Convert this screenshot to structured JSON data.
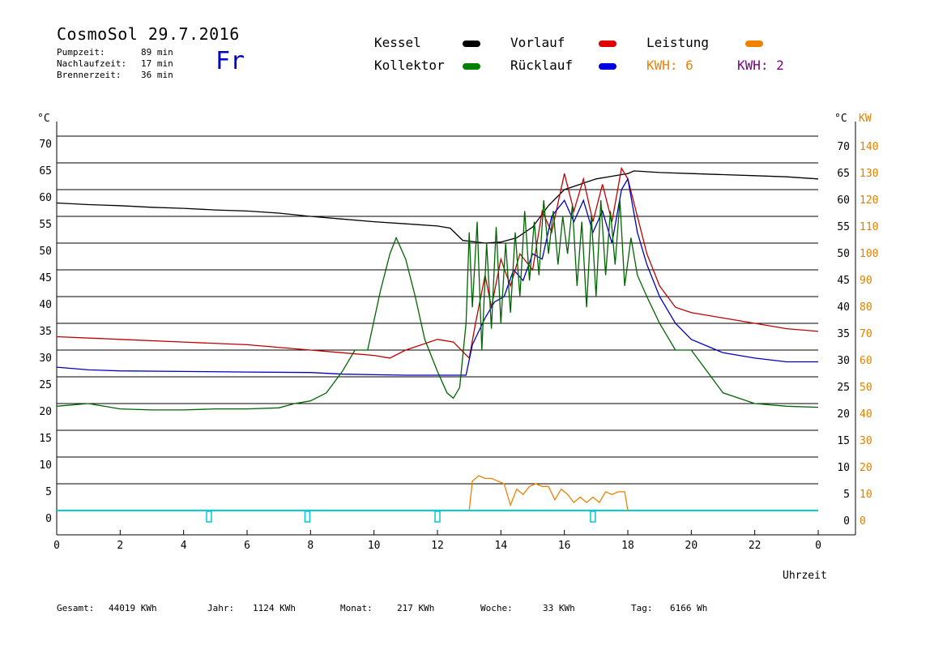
{
  "header": {
    "title": "CosmoSol 29.7.2016",
    "stats": [
      {
        "label": "Pumpzeit:",
        "value": "89 min"
      },
      {
        "label": "Nachlaufzeit:",
        "value": "17 min"
      },
      {
        "label": "Brennerzeit:",
        "value": "36 min"
      }
    ],
    "day": "Fr"
  },
  "legend": {
    "items": [
      {
        "label": "Kessel",
        "color": "#000000"
      },
      {
        "label": "Vorlauf",
        "color": "#e00000"
      },
      {
        "label": "Leistung",
        "color": "#f08000"
      },
      {
        "label": "Kollektor",
        "color": "#008000"
      },
      {
        "label": "Rücklauf",
        "color": "#0000e0"
      }
    ],
    "kwh": [
      {
        "label": "KWH: 6",
        "color": "#f08000"
      },
      {
        "label": "KWH: 2",
        "color": "#800080"
      }
    ]
  },
  "footer": [
    {
      "label": "Gesamt:",
      "value": "44019 KWh"
    },
    {
      "label": "Jahr:",
      "value": "1124 KWh"
    },
    {
      "label": "Monat:",
      "value": "217 KWh"
    },
    {
      "label": "Woche:",
      "value": "33 KWh"
    },
    {
      "label": "Tag:",
      "value": "6166 Wh"
    }
  ],
  "chart_data": {
    "type": "line",
    "xlabel": "Uhrzeit",
    "xlim": [
      0,
      24
    ],
    "x_ticks": [
      "0",
      "2",
      "4",
      "6",
      "8",
      "10",
      "12",
      "14",
      "16",
      "18",
      "20",
      "22",
      "0"
    ],
    "ylabel_left": "°C",
    "ylabel_right": "°C",
    "ylabel_right2": "KW",
    "ylim": [
      0,
      70
    ],
    "y_ticks": [
      0,
      5,
      10,
      15,
      20,
      25,
      30,
      35,
      40,
      45,
      50,
      55,
      60,
      65,
      70
    ],
    "y2_ticks": [
      0,
      10,
      20,
      30,
      40,
      50,
      60,
      70,
      80,
      90,
      100,
      110,
      120,
      130,
      140
    ],
    "y2_unit_ratio": 2,
    "grid": true,
    "series": [
      {
        "name": "Kessel",
        "color": "#000000",
        "x": [
          0,
          1,
          2,
          3,
          4,
          5,
          6,
          7,
          8,
          9,
          10,
          11,
          12,
          12.4,
          12.8,
          13.5,
          14,
          14.5,
          15,
          15.5,
          16,
          16.5,
          17,
          17.5,
          18,
          18.2,
          19,
          20,
          21,
          22,
          23,
          24
        ],
        "y": [
          57.5,
          57.2,
          57,
          56.7,
          56.5,
          56.2,
          56,
          55.6,
          55,
          54.5,
          54,
          53.6,
          53.2,
          52.8,
          50.5,
          50,
          50.2,
          51,
          53,
          57,
          60,
          61,
          62,
          62.5,
          63,
          63.5,
          63.2,
          63,
          62.8,
          62.6,
          62.4,
          62
        ]
      },
      {
        "name": "Vorlauf",
        "color": "#c00000",
        "x": [
          0,
          2,
          4,
          6,
          8,
          9,
          10,
          10.5,
          11,
          12,
          12.5,
          13,
          13.2,
          13.5,
          13.7,
          14,
          14.3,
          14.6,
          15,
          15.3,
          15.6,
          16,
          16.3,
          16.6,
          16.9,
          17.2,
          17.5,
          17.8,
          18,
          18.3,
          18.6,
          19,
          19.5,
          20,
          21,
          22,
          23,
          24
        ],
        "y": [
          32.5,
          32,
          31.5,
          31,
          30,
          29.5,
          29,
          28.5,
          30,
          32,
          31.5,
          28.5,
          35,
          44,
          38,
          47,
          42,
          48,
          45,
          56,
          52,
          63,
          56,
          62,
          54,
          61,
          54,
          64,
          62,
          55,
          48,
          42,
          38,
          37,
          36,
          35,
          34,
          33.5
        ]
      },
      {
        "name": "Rücklauf",
        "color": "#0000c0",
        "x": [
          0,
          1,
          2,
          4,
          6,
          8,
          9,
          10,
          11,
          12,
          12.9,
          13.1,
          13.5,
          13.8,
          14.1,
          14.4,
          14.7,
          15,
          15.3,
          15.6,
          16,
          16.3,
          16.6,
          16.9,
          17.2,
          17.5,
          17.8,
          18,
          18.3,
          18.6,
          19,
          19.5,
          20,
          21,
          22,
          23,
          24
        ],
        "y": [
          26.8,
          26.3,
          26.1,
          26,
          25.9,
          25.8,
          25.5,
          25.4,
          25.3,
          25.3,
          25.3,
          31,
          36,
          39,
          40,
          45,
          43,
          48,
          47,
          55,
          58,
          54,
          58,
          52,
          56,
          50,
          60,
          62,
          52,
          46,
          40,
          35,
          32,
          29.5,
          28.5,
          27.8,
          27.8
        ]
      },
      {
        "name": "Kollektor",
        "color": "#006400",
        "x": [
          0,
          1,
          2,
          3,
          4,
          5,
          6,
          7,
          7.5,
          8,
          8.5,
          9,
          9.4,
          9.8,
          10.2,
          10.5,
          10.7,
          11,
          11.3,
          11.6,
          12,
          12.3,
          12.5,
          12.7,
          12.9,
          13.0,
          13.1,
          13.25,
          13.4,
          13.55,
          13.7,
          13.85,
          14,
          14.15,
          14.3,
          14.45,
          14.6,
          14.75,
          14.9,
          15.05,
          15.2,
          15.35,
          15.5,
          15.65,
          15.8,
          15.95,
          16.1,
          16.25,
          16.4,
          16.55,
          16.7,
          16.85,
          17,
          17.15,
          17.3,
          17.45,
          17.6,
          17.75,
          17.9,
          18.1,
          18.3,
          18.6,
          19,
          19.5,
          20,
          20.5,
          21,
          22,
          23,
          24
        ],
        "y": [
          19.5,
          20,
          19,
          18.8,
          18.8,
          19,
          19,
          19.2,
          20,
          20.5,
          22,
          26,
          30,
          30,
          41,
          48,
          51,
          47,
          40,
          32,
          26,
          22,
          21,
          23,
          35,
          52,
          38,
          54,
          30,
          50,
          34,
          53,
          35,
          50,
          37,
          52,
          40,
          56,
          43,
          54,
          44,
          58,
          48,
          56,
          46,
          55,
          48,
          57,
          42,
          54,
          38,
          55,
          40,
          58,
          44,
          56,
          46,
          58,
          42,
          51,
          44,
          40,
          35,
          30,
          30,
          26,
          22,
          20,
          19.5,
          19.3
        ]
      },
      {
        "name": "Leistung",
        "color": "#f08000",
        "unit": "KW",
        "x": [
          13.0,
          13.1,
          13.3,
          13.5,
          13.7,
          13.9,
          14.1,
          14.3,
          14.5,
          14.7,
          14.9,
          15.1,
          15.3,
          15.5,
          15.7,
          15.9,
          16.1,
          16.3,
          16.5,
          16.7,
          16.9,
          17.1,
          17.3,
          17.5,
          17.7,
          17.9,
          18.0
        ],
        "y": [
          0,
          11,
          13,
          12,
          12,
          11,
          10,
          2,
          8,
          6,
          9,
          10,
          9,
          9,
          4,
          8,
          6,
          3,
          5,
          3,
          5,
          3,
          7,
          6,
          7,
          7,
          0
        ]
      }
    ]
  }
}
